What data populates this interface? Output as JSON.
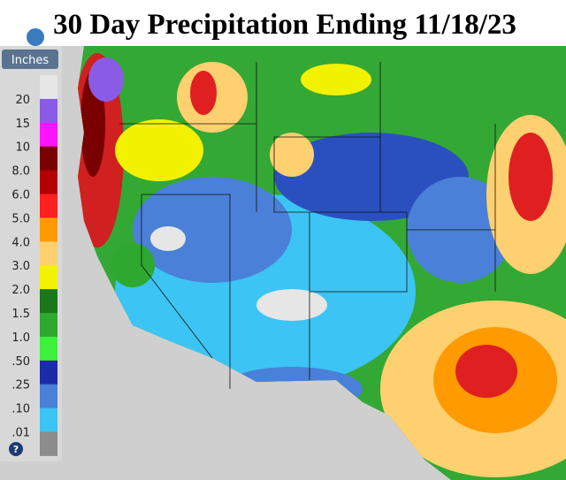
{
  "title": "30 Day Precipitation Ending 11/18/23",
  "legend": {
    "unit": "Inches",
    "labels": [
      "20",
      "15",
      "10",
      "8.0",
      "6.0",
      "5.0",
      "4.0",
      "3.0",
      "2.0",
      "1.5",
      "1.0",
      ".50",
      ".25",
      ".10",
      ".01"
    ],
    "colors": [
      "#e6e6e6",
      "#8a5ce6",
      "#ff14ff",
      "#7a0000",
      "#b40000",
      "#ff2020",
      "#ff9a00",
      "#ffd070",
      "#f2f200",
      "#1a781a",
      "#2ea82e",
      "#3cf03c",
      "#1c2ca8",
      "#4a80d8",
      "#3cc4f4",
      "#8c8c8c"
    ]
  }
}
